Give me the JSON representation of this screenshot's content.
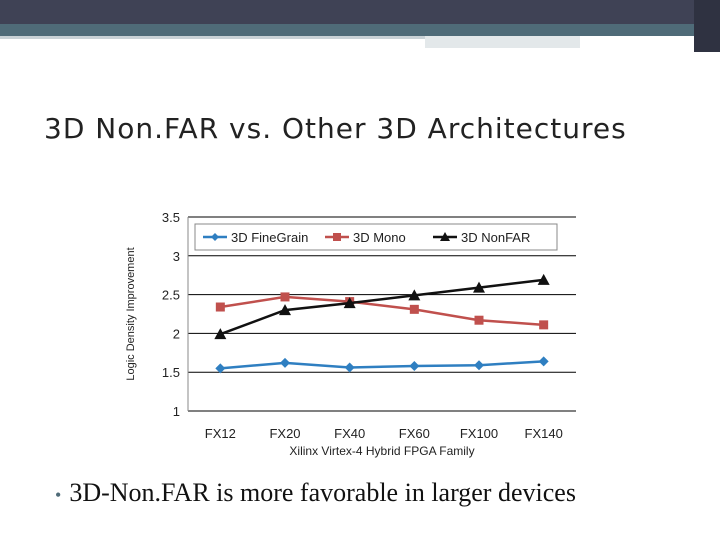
{
  "slide": {
    "title": "3D Non.FAR vs. Other 3D Architectures",
    "bullet": "3D-Non.FAR is more favorable in larger devices",
    "bullet_marker": "•",
    "theme_colors": {
      "bar_dark": "#3f4255",
      "bar_accent": "#4f6b78"
    }
  },
  "chart_data": {
    "type": "line",
    "categories": [
      "FX12",
      "FX20",
      "FX40",
      "FX60",
      "FX100",
      "FX140"
    ],
    "xlabel": "Xilinx Virtex-4 Hybrid FPGA Family",
    "ylabel": "Logic Density Improvement",
    "ylim": [
      1,
      3.5
    ],
    "yticks": [
      "1",
      "1.5",
      "2",
      "2.5",
      "3",
      "3.5"
    ],
    "grid": true,
    "legend_position": "top",
    "series": [
      {
        "name": "3D FineGrain",
        "color": "#2f7fc1",
        "marker": "diamond",
        "values": [
          1.55,
          1.62,
          1.56,
          1.58,
          1.59,
          1.64
        ]
      },
      {
        "name": "3D Mono",
        "color": "#c0504d",
        "marker": "square",
        "values": [
          2.34,
          2.47,
          2.41,
          2.31,
          2.17,
          2.11
        ]
      },
      {
        "name": "3D NonFAR",
        "color": "#111111",
        "marker": "triangle",
        "values": [
          1.99,
          2.3,
          2.39,
          2.49,
          2.59,
          2.69
        ]
      }
    ]
  }
}
